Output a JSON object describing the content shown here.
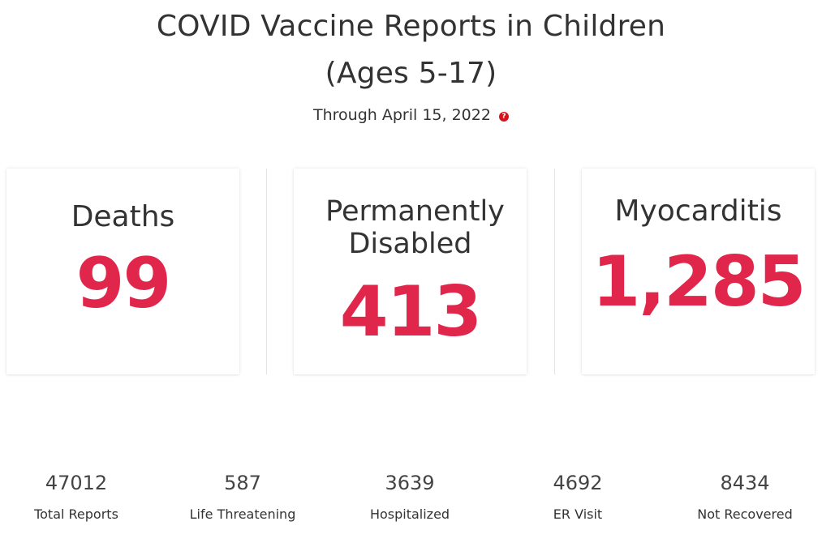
{
  "header": {
    "title_line1": "COVID Vaccine Reports in Children",
    "title_line2": "(Ages 5-17)",
    "subtitle": "Through April 15, 2022",
    "help_icon_glyph": "?"
  },
  "cards": [
    {
      "label": "Deaths",
      "value": "99"
    },
    {
      "label_line1": "Permanently",
      "label_line2": "Disabled",
      "value": "413"
    },
    {
      "label": "Myocarditis",
      "value": "1,285"
    }
  ],
  "stats": [
    {
      "value": "47012",
      "label": "Total Reports"
    },
    {
      "value": "587",
      "label": "Life Threatening"
    },
    {
      "value": "3639",
      "label": "Hospitalized"
    },
    {
      "value": "4692",
      "label": "ER Visit"
    },
    {
      "value": "8434",
      "label": "Not Recovered"
    }
  ],
  "colors": {
    "accent": "#e0264b",
    "help_icon": "#d7141b",
    "text": "#333333"
  },
  "icons": {
    "help": "question-circle-icon"
  }
}
